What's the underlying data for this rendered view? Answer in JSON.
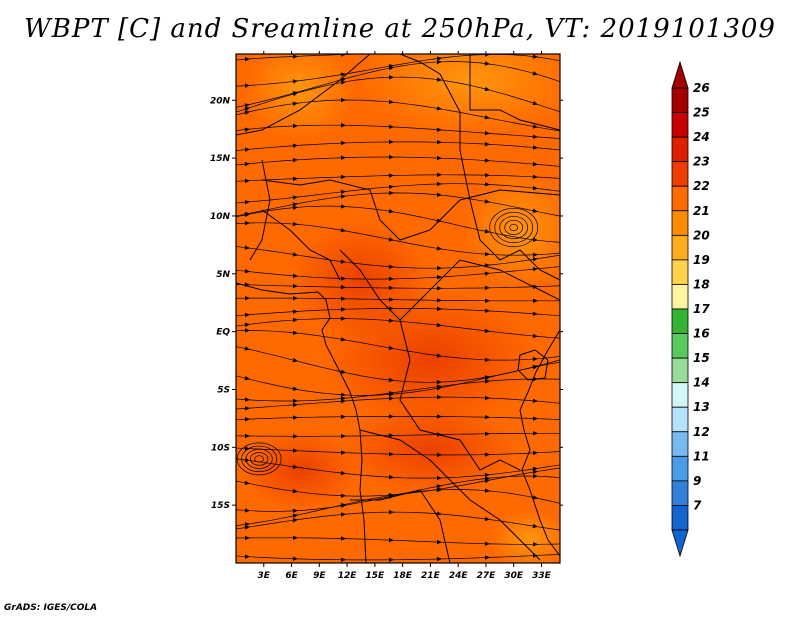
{
  "title": "WBPT [C] and Sreamline at 250hPa, VT: 2019101309",
  "footer": "GrADS: IGES/COLA",
  "map": {
    "lon_range": [
      0,
      35
    ],
    "lat_range": [
      -20,
      24
    ],
    "lon_ticks": [
      3,
      6,
      9,
      12,
      15,
      18,
      21,
      24,
      27,
      30,
      33
    ],
    "lon_labels": [
      "3E",
      "6E",
      "9E",
      "12E",
      "15E",
      "18E",
      "21E",
      "24E",
      "27E",
      "30E",
      "33E"
    ],
    "lat_ticks": [
      20,
      15,
      10,
      5,
      0,
      -5,
      -10,
      -15
    ],
    "lat_labels": [
      "20N",
      "15N",
      "10N",
      "5N",
      "EQ",
      "5S",
      "10S",
      "15S"
    ],
    "variable": "WBPT",
    "units": "C",
    "level": "250hPa",
    "field_color": "#ff6a00"
  },
  "colorbar": {
    "labels": [
      "26",
      "25",
      "24",
      "23",
      "22",
      "21",
      "20",
      "19",
      "18",
      "17",
      "16",
      "15",
      "14",
      "13",
      "12",
      "11",
      "9",
      "7"
    ],
    "colors": [
      "#a50000",
      "#c80000",
      "#e01e00",
      "#f03c00",
      "#ff6a00",
      "#ff8c00",
      "#ffad1e",
      "#ffd24b",
      "#fff5a0",
      "#32b432",
      "#5ac85a",
      "#96dc96",
      "#d2f5f5",
      "#b4e1fa",
      "#78b9f0",
      "#4b9be6",
      "#3282dc",
      "#1464d2"
    ]
  }
}
